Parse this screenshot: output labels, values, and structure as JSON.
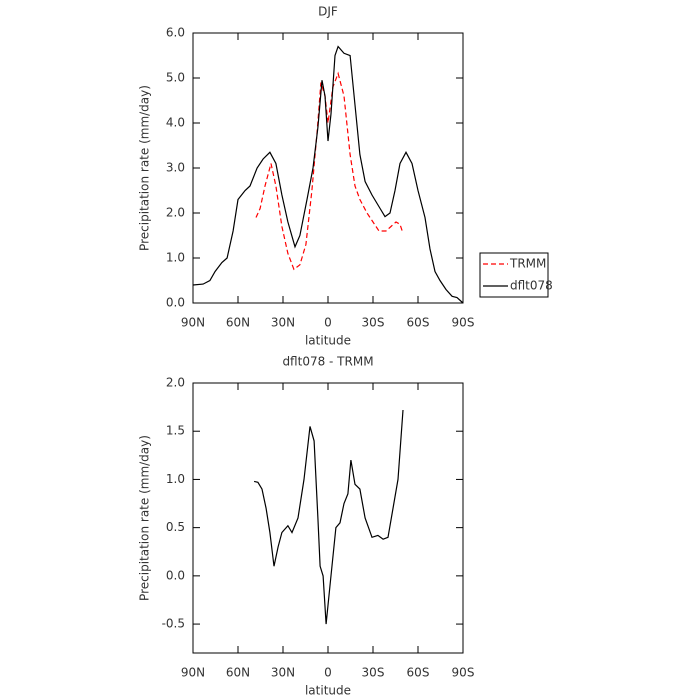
{
  "chart_data": [
    {
      "type": "line",
      "title": "DJF",
      "xlabel": "latitude",
      "ylabel": "Precipitation rate (mm/day)",
      "xlim": [
        90,
        -90
      ],
      "xticks": [
        {
          "value": 90,
          "label": "90N"
        },
        {
          "value": 60,
          "label": "60N"
        },
        {
          "value": 30,
          "label": "30N"
        },
        0,
        {
          "value": -30,
          "label": "30S"
        },
        {
          "value": -60,
          "label": "60S"
        },
        {
          "value": -90,
          "label": "90S"
        }
      ],
      "ylim": [
        0,
        6
      ],
      "yticks": [
        {
          "value": 0,
          "label": "0.0"
        },
        {
          "value": 1,
          "label": "1.0"
        },
        {
          "value": 2,
          "label": "2.0"
        },
        {
          "value": 3,
          "label": "3.0"
        },
        {
          "value": 4,
          "label": "4.0"
        },
        {
          "value": 5,
          "label": "5.0"
        },
        {
          "value": 6,
          "label": "6.0"
        }
      ],
      "legend": "right",
      "series": [
        {
          "name": "TRMM",
          "color": "#ff0000",
          "dashed": true,
          "x": [
            48,
            45.3,
            42,
            38,
            34.7,
            30.7,
            26.7,
            22.7,
            18.7,
            14.7,
            10.7,
            7.3,
            4.7,
            2,
            0,
            -3.3,
            -6.7,
            -10.7,
            -14.7,
            -18,
            -21.3,
            -26,
            -30,
            -34,
            -38.7,
            -42,
            -45.3,
            -48,
            -50
          ],
          "values": [
            1.9,
            2.1,
            2.6,
            3.1,
            2.6,
            1.7,
            1.1,
            0.75,
            0.85,
            1.3,
            2.5,
            3.8,
            4.9,
            4.6,
            4.0,
            4.8,
            5.1,
            4.6,
            3.3,
            2.6,
            2.3,
            2.0,
            1.8,
            1.6,
            1.6,
            1.7,
            1.8,
            1.75,
            1.55
          ]
        },
        {
          "name": "dflt078",
          "color": "#000000",
          "dashed": false,
          "x": [
            90,
            83.3,
            78.7,
            75.3,
            70.7,
            67.3,
            63.3,
            60,
            55.3,
            52,
            47.3,
            43.3,
            38.7,
            34.7,
            30.7,
            26.7,
            22,
            18.7,
            14,
            10,
            6.7,
            4,
            2,
            0,
            -2,
            -4.7,
            -6.7,
            -10.7,
            -14.7,
            -18,
            -21.3,
            -24.7,
            -29.3,
            -34.7,
            -38,
            -41.3,
            -44.7,
            -48,
            -52,
            -56,
            -60,
            -64.7,
            -68,
            -71.3,
            -74.7,
            -78.7,
            -82.7,
            -86,
            -90
          ],
          "values": [
            0.4,
            0.42,
            0.5,
            0.7,
            0.9,
            1.0,
            1.6,
            2.3,
            2.5,
            2.6,
            3.0,
            3.2,
            3.35,
            3.1,
            2.4,
            1.8,
            1.25,
            1.5,
            2.3,
            3.0,
            3.9,
            4.95,
            4.6,
            3.6,
            4.2,
            5.5,
            5.7,
            5.55,
            5.5,
            4.4,
            3.3,
            2.7,
            2.4,
            2.1,
            1.92,
            2.0,
            2.5,
            3.1,
            3.35,
            3.1,
            2.5,
            1.9,
            1.2,
            0.7,
            0.5,
            0.3,
            0.15,
            0.12,
            0.0
          ]
        }
      ]
    },
    {
      "type": "line",
      "title": "dflt078 - TRMM",
      "xlabel": "latitude",
      "ylabel": "Precipitation rate (mm/day)",
      "xlim": [
        90,
        -90
      ],
      "xticks": [
        {
          "value": 90,
          "label": "90N"
        },
        {
          "value": 60,
          "label": "60N"
        },
        {
          "value": 30,
          "label": "30N"
        },
        0,
        {
          "value": -30,
          "label": "30S"
        },
        {
          "value": -60,
          "label": "60S"
        },
        {
          "value": -90,
          "label": "90S"
        }
      ],
      "ylim": [
        -0.8,
        2.0
      ],
      "yticks": [
        -0.5,
        {
          "value": 0,
          "label": "0.0"
        },
        0.5,
        {
          "value": 1,
          "label": "1.0"
        },
        1.5,
        {
          "value": 2,
          "label": "2.0"
        }
      ],
      "series": [
        {
          "color": "#000000",
          "dashed": false,
          "x": [
            49.3,
            46.7,
            44,
            41.3,
            38.7,
            36,
            33.3,
            30.7,
            26.7,
            24,
            20,
            16,
            12,
            9.3,
            6.7,
            5.3,
            3.3,
            1.3,
            -1.3,
            -5.3,
            -8,
            -10.7,
            -13.3,
            -15.3,
            -18,
            -21.3,
            -24.7,
            -29.3,
            -33.3,
            -36.7,
            -40,
            -43.3,
            -46.7,
            -50
          ],
          "values": [
            0.98,
            0.97,
            0.9,
            0.7,
            0.45,
            0.1,
            0.3,
            0.45,
            0.52,
            0.45,
            0.6,
            1.0,
            1.55,
            1.4,
            0.6,
            0.1,
            0.0,
            -0.5,
            -0.1,
            0.5,
            0.55,
            0.75,
            0.85,
            1.2,
            0.95,
            0.9,
            0.6,
            0.4,
            0.42,
            0.38,
            0.4,
            0.7,
            1.0,
            1.72
          ]
        }
      ]
    }
  ]
}
